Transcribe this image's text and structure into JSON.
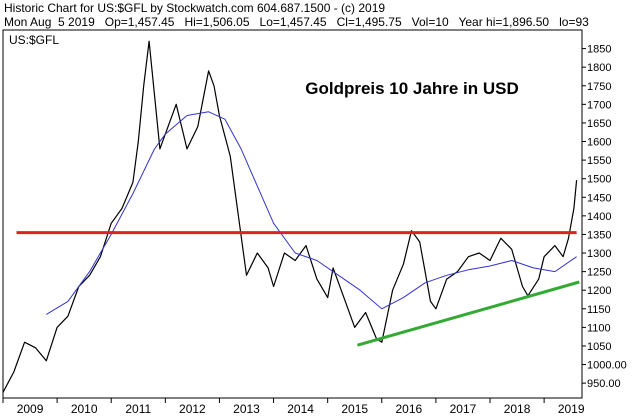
{
  "header": {
    "line1": "Historic Chart for US:$GFL by Stockwatch.com 604.687.1500 - (c) 2019",
    "line2": "Mon Aug  5 2019   Op=1,457.45   Hi=1,506.05   Lo=1,457.45   Cl=1,495.75   Vol=10   Year hi=1,896.50   lo=93"
  },
  "chart_data": {
    "type": "line",
    "symbol_label": "US:$GFL",
    "title": "Goldpreis 10 Jahre in USD",
    "xlabel": "",
    "ylabel": "",
    "ylim": [
      910,
      1900
    ],
    "xlim": [
      2009.0,
      2019.7
    ],
    "y_ticks": [
      950,
      1000,
      1050,
      1100,
      1150,
      1200,
      1250,
      1300,
      1350,
      1400,
      1450,
      1500,
      1550,
      1600,
      1650,
      1700,
      1750,
      1800,
      1850
    ],
    "y_tick_labels": [
      "950.00",
      "1000.00",
      "1050",
      "1100",
      "1150",
      "1200",
      "1250",
      "1300",
      "1350",
      "1400",
      "1450",
      "1500",
      "1550",
      "1600",
      "1650",
      "1700",
      "1750",
      "1800",
      "1850"
    ],
    "x_tick_labels": [
      "2009",
      "2010",
      "2011",
      "2012",
      "2013",
      "2014",
      "2015",
      "2016",
      "2017",
      "2018",
      "2019"
    ],
    "grid": false,
    "series": [
      {
        "kind": "price",
        "color": "#000000",
        "x": [
          2009.0,
          2009.2,
          2009.4,
          2009.6,
          2009.8,
          2010.0,
          2010.2,
          2010.4,
          2010.6,
          2010.8,
          2011.0,
          2011.2,
          2011.4,
          2011.5,
          2011.6,
          2011.7,
          2011.9,
          2012.0,
          2012.2,
          2012.4,
          2012.6,
          2012.8,
          2012.9,
          2013.0,
          2013.2,
          2013.35,
          2013.5,
          2013.7,
          2013.9,
          2014.0,
          2014.2,
          2014.4,
          2014.6,
          2014.8,
          2015.0,
          2015.1,
          2015.3,
          2015.5,
          2015.7,
          2015.9,
          2016.0,
          2016.2,
          2016.4,
          2016.55,
          2016.7,
          2016.9,
          2017.0,
          2017.2,
          2017.4,
          2017.6,
          2017.8,
          2018.0,
          2018.2,
          2018.4,
          2018.6,
          2018.7,
          2018.9,
          2019.0,
          2019.2,
          2019.35,
          2019.45,
          2019.55,
          2019.6
        ],
        "y": [
          925,
          980,
          1060,
          1045,
          1010,
          1100,
          1130,
          1210,
          1240,
          1290,
          1380,
          1420,
          1490,
          1600,
          1750,
          1870,
          1580,
          1620,
          1700,
          1580,
          1640,
          1790,
          1750,
          1670,
          1560,
          1400,
          1240,
          1300,
          1260,
          1210,
          1300,
          1280,
          1320,
          1230,
          1180,
          1260,
          1180,
          1100,
          1140,
          1070,
          1060,
          1200,
          1270,
          1360,
          1330,
          1170,
          1150,
          1230,
          1250,
          1290,
          1300,
          1280,
          1340,
          1310,
          1210,
          1185,
          1230,
          1290,
          1320,
          1290,
          1340,
          1420,
          1496
        ]
      },
      {
        "kind": "moving-average",
        "color": "#3333cc",
        "x": [
          2009.8,
          2010.2,
          2010.6,
          2011.0,
          2011.4,
          2011.8,
          2012.0,
          2012.4,
          2012.8,
          2013.1,
          2013.4,
          2013.7,
          2014.0,
          2014.4,
          2014.8,
          2015.2,
          2015.6,
          2016.0,
          2016.4,
          2016.8,
          2017.2,
          2017.6,
          2018.0,
          2018.4,
          2018.8,
          2019.2,
          2019.6
        ],
        "y": [
          1135,
          1170,
          1250,
          1350,
          1460,
          1580,
          1620,
          1670,
          1680,
          1660,
          1580,
          1480,
          1380,
          1300,
          1280,
          1240,
          1200,
          1150,
          1180,
          1220,
          1240,
          1255,
          1265,
          1280,
          1260,
          1250,
          1290
        ]
      },
      {
        "kind": "horizontal-line",
        "color": "#dd2222",
        "x": [
          2009.25,
          2019.6
        ],
        "y": [
          1355,
          1355
        ]
      },
      {
        "kind": "trend-line",
        "color": "#33aa33",
        "x": [
          2015.55,
          2019.65
        ],
        "y": [
          1052,
          1222
        ]
      }
    ]
  }
}
